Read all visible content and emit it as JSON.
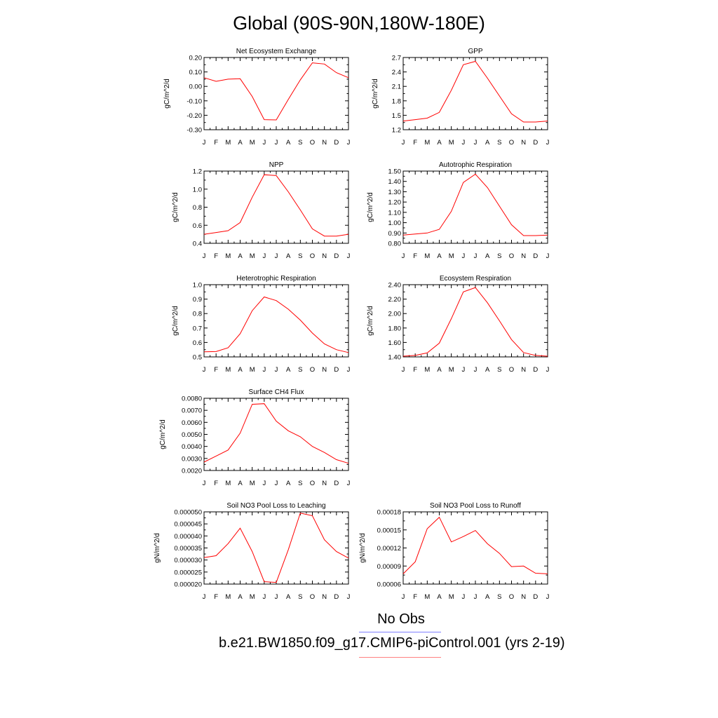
{
  "title": "Global (90S-90N,180W-180E)",
  "legend": {
    "obs_label": "No Obs",
    "case_label": "b.e21.BW1850.f09_g17.CMIP6-piControl.001 (yrs 2-19)",
    "obs_color": "#8080ff",
    "case_color": "#ff8080"
  },
  "colors": {
    "series": "#ff0000",
    "axis": "#000000"
  },
  "chart_data": [
    {
      "type": "line",
      "title": "Net Ecosystem Exchange",
      "ylabel": "gC/m^2/d",
      "x": [
        "J",
        "F",
        "M",
        "A",
        "M",
        "J",
        "J",
        "A",
        "S",
        "O",
        "N",
        "D",
        "J"
      ],
      "ylim": [
        -0.3,
        0.2
      ],
      "yticks": [
        "0.20",
        "0.10",
        "0.00",
        "-0.10",
        "-0.20",
        "-0.30"
      ],
      "ytick_values": [
        0.2,
        0.1,
        0.0,
        -0.1,
        -0.2,
        -0.3
      ],
      "series": [
        {
          "values": [
            0.06,
            0.035,
            0.05,
            0.053,
            -0.07,
            -0.23,
            -0.232,
            -0.09,
            0.045,
            0.163,
            0.155,
            0.095,
            0.06
          ]
        }
      ]
    },
    {
      "type": "line",
      "title": "GPP",
      "ylabel": "gC/m^2/d",
      "x": [
        "J",
        "F",
        "M",
        "A",
        "M",
        "J",
        "J",
        "A",
        "S",
        "O",
        "N",
        "D",
        "J"
      ],
      "ylim": [
        1.2,
        2.7
      ],
      "yticks": [
        "2.7",
        "2.4",
        "2.1",
        "1.8",
        "1.5",
        "1.2"
      ],
      "ytick_values": [
        2.7,
        2.4,
        2.1,
        1.8,
        1.5,
        1.2
      ],
      "series": [
        {
          "values": [
            1.38,
            1.41,
            1.44,
            1.56,
            2.02,
            2.55,
            2.62,
            2.27,
            1.9,
            1.53,
            1.36,
            1.36,
            1.38
          ]
        }
      ]
    },
    {
      "type": "line",
      "title": "NPP",
      "ylabel": "gC/m^2/d",
      "x": [
        "J",
        "F",
        "M",
        "A",
        "M",
        "J",
        "J",
        "A",
        "S",
        "O",
        "N",
        "D",
        "J"
      ],
      "ylim": [
        0.4,
        1.2
      ],
      "yticks": [
        "1.2",
        "1.0",
        "0.8",
        "0.6",
        "0.4"
      ],
      "ytick_values": [
        1.2,
        1.0,
        0.8,
        0.6,
        0.4
      ],
      "series": [
        {
          "values": [
            0.5,
            0.52,
            0.54,
            0.63,
            0.91,
            1.16,
            1.15,
            0.97,
            0.77,
            0.56,
            0.48,
            0.48,
            0.5
          ]
        }
      ]
    },
    {
      "type": "line",
      "title": "Autotrophic Respiration",
      "ylabel": "gC/m^2/d",
      "x": [
        "J",
        "F",
        "M",
        "A",
        "M",
        "J",
        "J",
        "A",
        "S",
        "O",
        "N",
        "D",
        "J"
      ],
      "ylim": [
        0.8,
        1.5
      ],
      "yticks": [
        "1.50",
        "1.40",
        "1.30",
        "1.20",
        "1.10",
        "1.00",
        "0.90",
        "0.80"
      ],
      "ytick_values": [
        1.5,
        1.4,
        1.3,
        1.2,
        1.1,
        1.0,
        0.9,
        0.8
      ],
      "series": [
        {
          "values": [
            0.88,
            0.89,
            0.9,
            0.935,
            1.11,
            1.39,
            1.47,
            1.34,
            1.16,
            0.98,
            0.875,
            0.875,
            0.88
          ]
        }
      ]
    },
    {
      "type": "line",
      "title": "Heterotrophic Respiration",
      "ylabel": "gC/m^2/d",
      "x": [
        "J",
        "F",
        "M",
        "A",
        "M",
        "J",
        "J",
        "A",
        "S",
        "O",
        "N",
        "D",
        "J"
      ],
      "ylim": [
        0.5,
        1.0
      ],
      "yticks": [
        "1.0",
        "0.9",
        "0.8",
        "0.7",
        "0.6",
        "0.5"
      ],
      "ytick_values": [
        1.0,
        0.9,
        0.8,
        0.7,
        0.6,
        0.5
      ],
      "series": [
        {
          "values": [
            0.535,
            0.537,
            0.563,
            0.66,
            0.82,
            0.915,
            0.89,
            0.83,
            0.755,
            0.665,
            0.59,
            0.55,
            0.53
          ]
        }
      ]
    },
    {
      "type": "line",
      "title": "Ecosystem Respiration",
      "ylabel": "gC/m^2/d",
      "x": [
        "J",
        "F",
        "M",
        "A",
        "M",
        "J",
        "J",
        "A",
        "S",
        "O",
        "N",
        "D",
        "J"
      ],
      "ylim": [
        1.4,
        2.4
      ],
      "yticks": [
        "2.40",
        "2.20",
        "2.00",
        "1.80",
        "1.60",
        "1.40"
      ],
      "ytick_values": [
        2.4,
        2.2,
        2.0,
        1.8,
        1.6,
        1.4
      ],
      "series": [
        {
          "values": [
            1.41,
            1.42,
            1.455,
            1.59,
            1.93,
            2.3,
            2.36,
            2.15,
            1.9,
            1.64,
            1.46,
            1.42,
            1.41
          ]
        }
      ]
    },
    {
      "type": "line",
      "title": "Surface CH4 Flux",
      "ylabel": "gC/m^2/d",
      "x": [
        "J",
        "F",
        "M",
        "A",
        "M",
        "J",
        "J",
        "A",
        "S",
        "O",
        "N",
        "D",
        "J"
      ],
      "ylim": [
        0.002,
        0.008
      ],
      "yticks": [
        "0.0080",
        "0.0070",
        "0.0060",
        "0.0050",
        "0.0040",
        "0.0030",
        "0.0020"
      ],
      "ytick_values": [
        0.008,
        0.007,
        0.006,
        0.005,
        0.004,
        0.003,
        0.002
      ],
      "series": [
        {
          "values": [
            0.0027,
            0.0032,
            0.0037,
            0.0051,
            0.0075,
            0.00755,
            0.0061,
            0.0053,
            0.0048,
            0.004,
            0.0035,
            0.0029,
            0.0026
          ]
        }
      ]
    },
    {
      "type": "line",
      "title": "Soil NO3 Pool Loss to Leaching",
      "ylabel": "gN/m^2/d",
      "x": [
        "J",
        "F",
        "M",
        "A",
        "M",
        "J",
        "J",
        "A",
        "S",
        "O",
        "N",
        "D",
        "J"
      ],
      "ylim": [
        2e-05,
        5e-05
      ],
      "yticks": [
        "0.000050",
        "0.000045",
        "0.000040",
        "0.000035",
        "0.000030",
        "0.000025",
        "0.000020"
      ],
      "ytick_values": [
        5e-05,
        4.5e-05,
        4e-05,
        3.5e-05,
        3e-05,
        2.5e-05,
        2e-05
      ],
      "series": [
        {
          "values": [
            3.1e-05,
            3.18e-05,
            3.68e-05,
            4.32e-05,
            3.35e-05,
            2.1e-05,
            2.07e-05,
            3.43e-05,
            4.95e-05,
            4.84e-05,
            3.84e-05,
            3.35e-05,
            3.08e-05
          ]
        }
      ]
    },
    {
      "type": "line",
      "title": "Soil NO3 Pool Loss to Runoff",
      "ylabel": "gN/m^2/d",
      "x": [
        "J",
        "F",
        "M",
        "A",
        "M",
        "J",
        "J",
        "A",
        "S",
        "O",
        "N",
        "D",
        "J"
      ],
      "ylim": [
        6e-05,
        0.00018
      ],
      "yticks": [
        "0.00018",
        "0.00015",
        "0.00012",
        "0.00009",
        "0.00006"
      ],
      "ytick_values": [
        0.00018,
        0.00015,
        0.00012,
        9e-05,
        6e-05
      ],
      "series": [
        {
          "values": [
            7.7e-05,
            9.7e-05,
            0.000152,
            0.000171,
            0.00013,
            0.000139,
            0.000149,
            0.000127,
            0.000111,
            8.9e-05,
            9e-05,
            7.8e-05,
            7.7e-05
          ]
        }
      ]
    }
  ]
}
